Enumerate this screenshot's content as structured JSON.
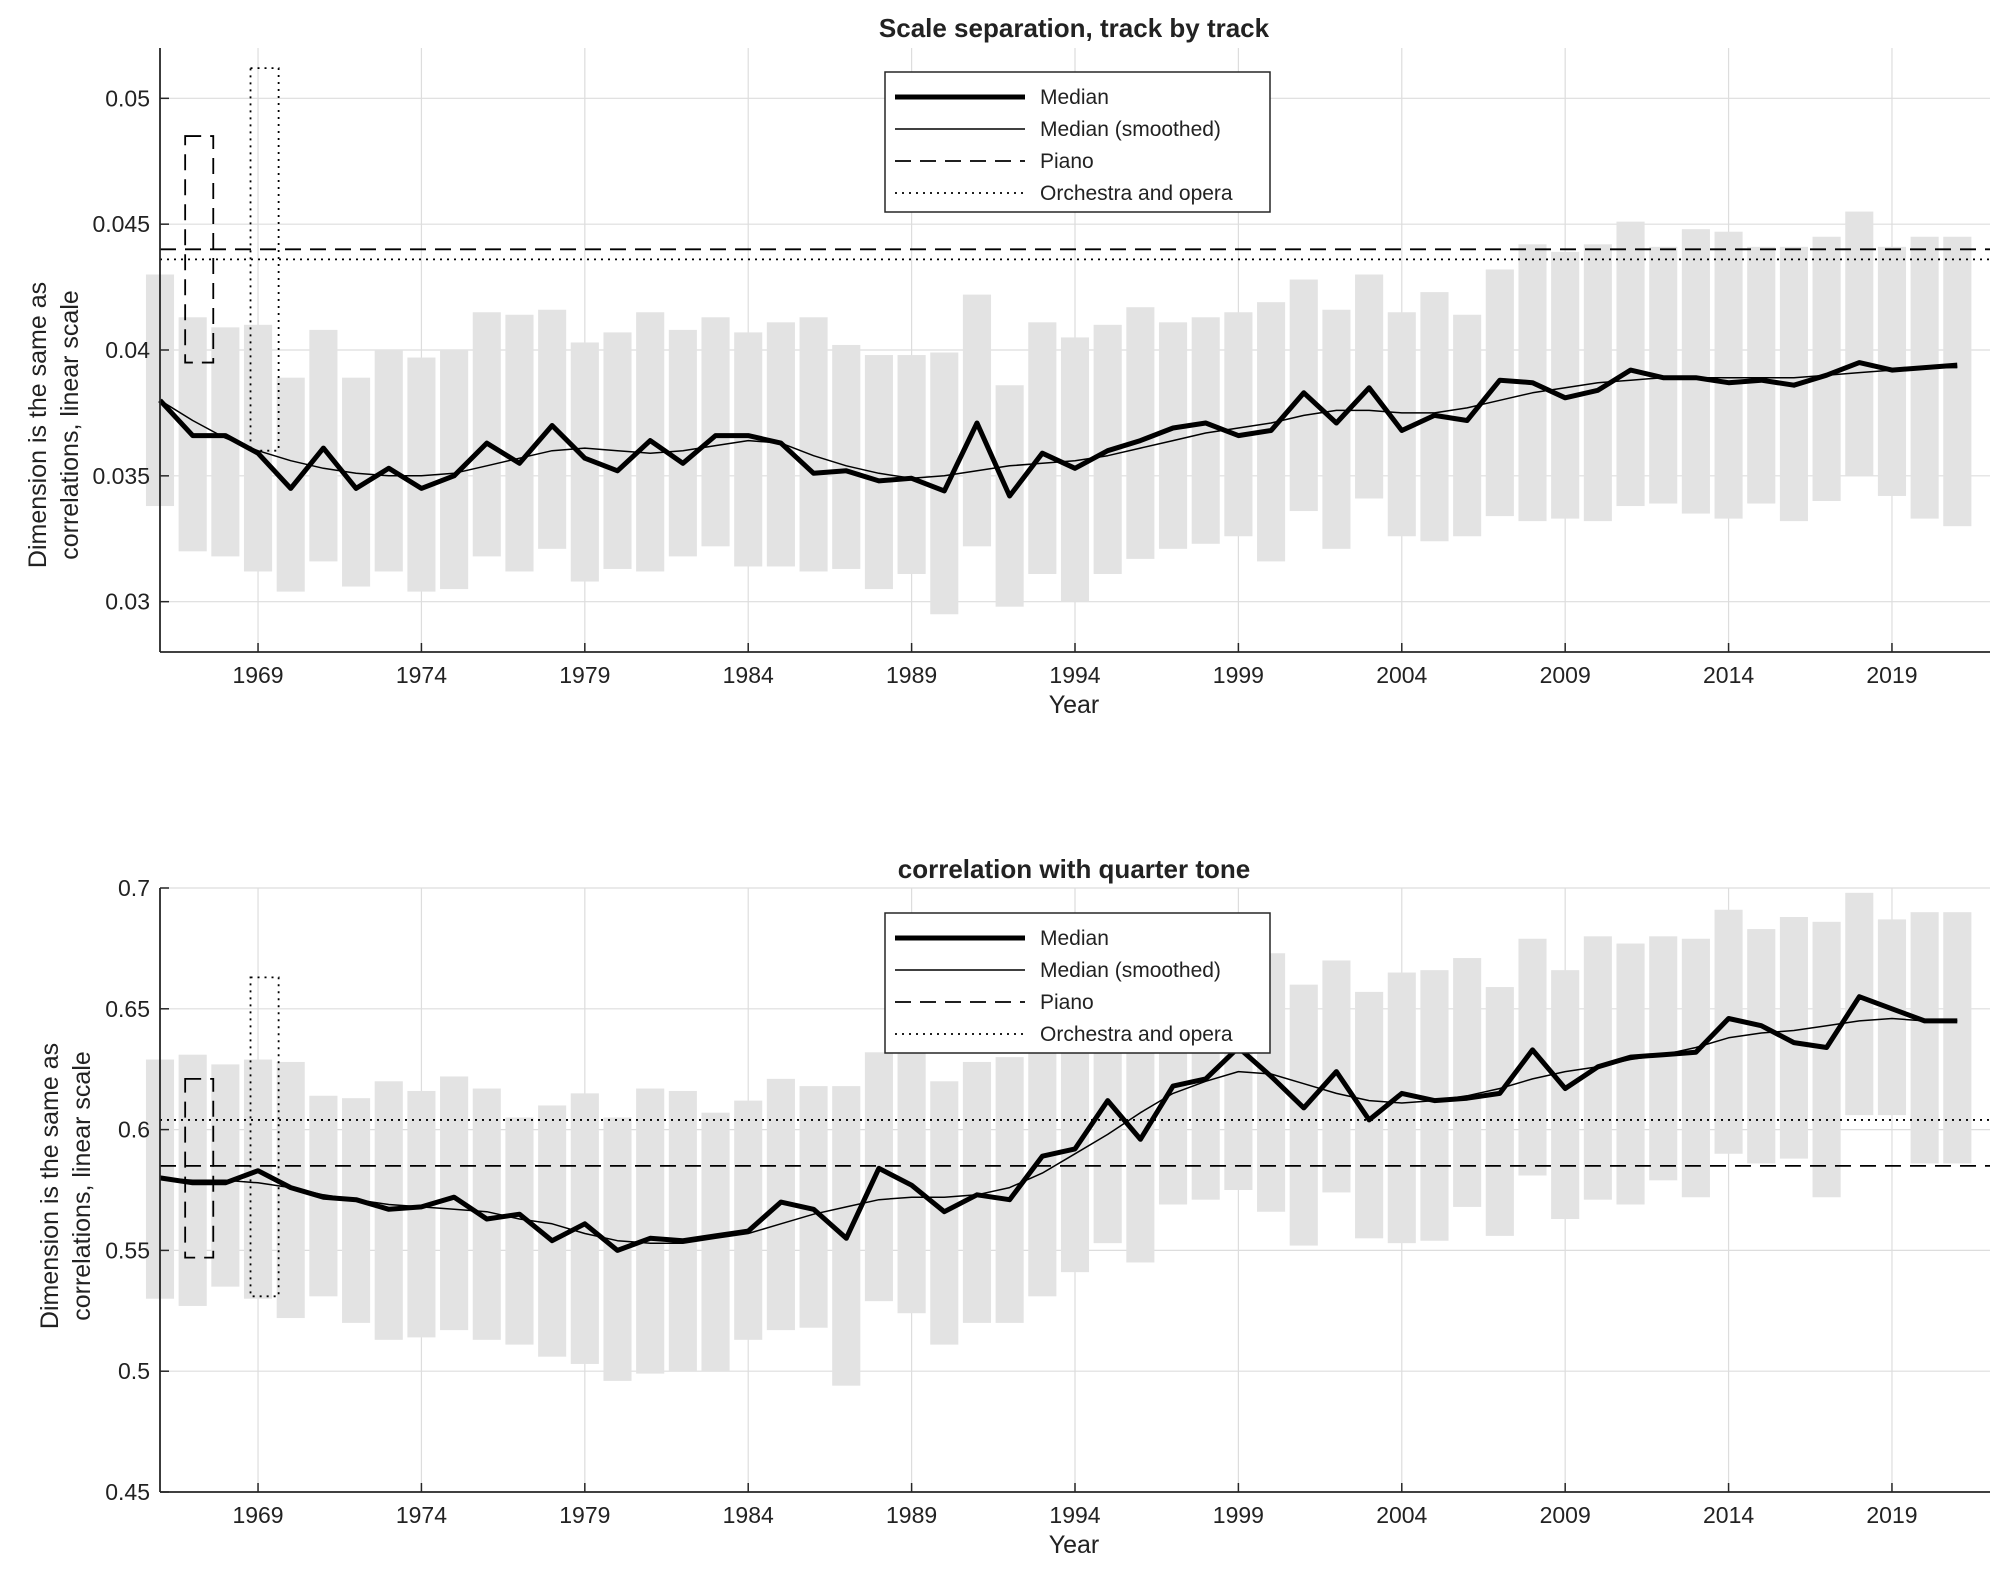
{
  "chart_data": [
    {
      "type": "line",
      "title": "Scale separation, track by track",
      "xlabel": "Year",
      "ylabel_lines": [
        "Dimension is the same as",
        "correlations, linear scale"
      ],
      "xlim": [
        1966,
        2022
      ],
      "ylim": [
        0.028,
        0.052
      ],
      "yticks": [
        0.03,
        0.035,
        0.04,
        0.045,
        0.05
      ],
      "ytick_labels": [
        "0.03",
        "0.035",
        "0.04",
        "0.045",
        "0.05"
      ],
      "xticks": [
        1969,
        1974,
        1979,
        1984,
        1989,
        1994,
        1999,
        2004,
        2009,
        2014,
        2019
      ],
      "xtick_labels": [
        "1969",
        "1974",
        "1979",
        "1984",
        "1989",
        "1994",
        "1999",
        "2004",
        "2009",
        "2014",
        "2019"
      ],
      "grid": true,
      "legend_position": "top-center",
      "legend": [
        "Median",
        "Median (smoothed)",
        "Piano",
        "Orchestra and opera"
      ],
      "x": [
        1966,
        1967,
        1968,
        1969,
        1970,
        1971,
        1972,
        1973,
        1974,
        1975,
        1976,
        1977,
        1978,
        1979,
        1980,
        1981,
        1982,
        1983,
        1984,
        1985,
        1986,
        1987,
        1988,
        1989,
        1990,
        1991,
        1992,
        1993,
        1994,
        1995,
        1996,
        1997,
        1998,
        1999,
        2000,
        2001,
        2002,
        2003,
        2004,
        2005,
        2006,
        2007,
        2008,
        2009,
        2010,
        2011,
        2012,
        2013,
        2014,
        2015,
        2016,
        2017,
        2018,
        2019,
        2020,
        2021
      ],
      "range_low": [
        0.0338,
        0.032,
        0.0318,
        0.0312,
        0.0304,
        0.0316,
        0.0306,
        0.0312,
        0.0304,
        0.0305,
        0.0318,
        0.0312,
        0.0321,
        0.0308,
        0.0313,
        0.0312,
        0.0318,
        0.0322,
        0.0314,
        0.0314,
        0.0312,
        0.0313,
        0.0305,
        0.0311,
        0.0295,
        0.0322,
        0.0298,
        0.0311,
        0.03,
        0.0311,
        0.0317,
        0.0321,
        0.0323,
        0.0326,
        0.0316,
        0.0336,
        0.0321,
        0.0341,
        0.0326,
        0.0324,
        0.0326,
        0.0334,
        0.0332,
        0.0333,
        0.0332,
        0.0338,
        0.0339,
        0.0335,
        0.0333,
        0.0339,
        0.0332,
        0.034,
        0.035,
        0.0342,
        0.0333,
        0.033
      ],
      "range_high": [
        0.043,
        0.0413,
        0.0409,
        0.041,
        0.0389,
        0.0408,
        0.0389,
        0.04,
        0.0397,
        0.04,
        0.0415,
        0.0414,
        0.0416,
        0.0403,
        0.0407,
        0.0415,
        0.0408,
        0.0413,
        0.0407,
        0.0411,
        0.0413,
        0.0402,
        0.0398,
        0.0398,
        0.0399,
        0.0422,
        0.0386,
        0.0411,
        0.0405,
        0.041,
        0.0417,
        0.0411,
        0.0413,
        0.0415,
        0.0419,
        0.0428,
        0.0416,
        0.043,
        0.0415,
        0.0423,
        0.0414,
        0.0432,
        0.0442,
        0.0439,
        0.0442,
        0.0451,
        0.0441,
        0.0448,
        0.0447,
        0.0441,
        0.0441,
        0.0445,
        0.0455,
        0.0441,
        0.0445,
        0.0445
      ],
      "series": [
        {
          "name": "Median",
          "values": [
            0.038,
            0.0366,
            0.0366,
            0.0359,
            0.0345,
            0.0361,
            0.0345,
            0.0353,
            0.0345,
            0.035,
            0.0363,
            0.0355,
            0.037,
            0.0357,
            0.0352,
            0.0364,
            0.0355,
            0.0366,
            0.0366,
            0.0363,
            0.0351,
            0.0352,
            0.0348,
            0.0349,
            0.0344,
            0.0371,
            0.0342,
            0.0359,
            0.0353,
            0.036,
            0.0364,
            0.0369,
            0.0371,
            0.0366,
            0.0368,
            0.0383,
            0.0371,
            0.0385,
            0.0368,
            0.0374,
            0.0372,
            0.0388,
            0.0387,
            0.0381,
            0.0384,
            0.0392,
            0.0389,
            0.0389,
            0.0387,
            0.0388,
            0.0386,
            0.039,
            0.0395,
            0.0392,
            0.0393,
            0.0394
          ]
        },
        {
          "name": "Median (smoothed)",
          "values": [
            0.038,
            0.0372,
            0.0365,
            0.036,
            0.0356,
            0.0353,
            0.0351,
            0.035,
            0.035,
            0.0351,
            0.0354,
            0.0357,
            0.036,
            0.0361,
            0.036,
            0.0359,
            0.036,
            0.0362,
            0.0364,
            0.0363,
            0.0358,
            0.0354,
            0.0351,
            0.0349,
            0.035,
            0.0352,
            0.0354,
            0.0355,
            0.0356,
            0.0358,
            0.0361,
            0.0364,
            0.0367,
            0.0369,
            0.0371,
            0.0374,
            0.0376,
            0.0376,
            0.0375,
            0.0375,
            0.0377,
            0.038,
            0.0383,
            0.0385,
            0.0387,
            0.0388,
            0.0389,
            0.0389,
            0.0389,
            0.0389,
            0.0389,
            0.039,
            0.0391,
            0.0392,
            0.0393,
            0.0393
          ]
        }
      ],
      "reference_lines": [
        {
          "name": "Piano",
          "value": 0.044
        },
        {
          "name": "Orchestra and opera",
          "value": 0.0436
        }
      ],
      "reference_ranges": [
        {
          "name": "Piano",
          "x": 1967.2,
          "low": 0.0395,
          "high": 0.0485
        },
        {
          "name": "Orchestra and opera",
          "x": 1969.2,
          "low": 0.036,
          "high": 0.0512
        }
      ]
    },
    {
      "type": "line",
      "title": "correlation with quarter tone",
      "xlabel": "Year",
      "ylabel_lines": [
        "Dimension is the same as",
        "correlations, linear scale"
      ],
      "xlim": [
        1966,
        2022
      ],
      "ylim": [
        0.45,
        0.7
      ],
      "yticks": [
        0.45,
        0.5,
        0.55,
        0.6,
        0.65,
        0.7
      ],
      "ytick_labels": [
        "0.45",
        "0.5",
        "0.55",
        "0.6",
        "0.65",
        "0.7"
      ],
      "xticks": [
        1969,
        1974,
        1979,
        1984,
        1989,
        1994,
        1999,
        2004,
        2009,
        2014,
        2019
      ],
      "xtick_labels": [
        "1969",
        "1974",
        "1979",
        "1984",
        "1989",
        "1994",
        "1999",
        "2004",
        "2009",
        "2014",
        "2019"
      ],
      "grid": true,
      "legend_position": "top-center",
      "legend": [
        "Median",
        "Median (smoothed)",
        "Piano",
        "Orchestra and opera"
      ],
      "x": [
        1966,
        1967,
        1968,
        1969,
        1970,
        1971,
        1972,
        1973,
        1974,
        1975,
        1976,
        1977,
        1978,
        1979,
        1980,
        1981,
        1982,
        1983,
        1984,
        1985,
        1986,
        1987,
        1988,
        1989,
        1990,
        1991,
        1992,
        1993,
        1994,
        1995,
        1996,
        1997,
        1998,
        1999,
        2000,
        2001,
        2002,
        2003,
        2004,
        2005,
        2006,
        2007,
        2008,
        2009,
        2010,
        2011,
        2012,
        2013,
        2014,
        2015,
        2016,
        2017,
        2018,
        2019,
        2020,
        2021
      ],
      "range_low": [
        0.53,
        0.527,
        0.535,
        0.53,
        0.522,
        0.531,
        0.52,
        0.513,
        0.514,
        0.517,
        0.513,
        0.511,
        0.506,
        0.503,
        0.496,
        0.499,
        0.5,
        0.5,
        0.513,
        0.517,
        0.518,
        0.494,
        0.529,
        0.524,
        0.511,
        0.52,
        0.52,
        0.531,
        0.541,
        0.553,
        0.545,
        0.569,
        0.571,
        0.575,
        0.566,
        0.552,
        0.574,
        0.555,
        0.553,
        0.554,
        0.568,
        0.556,
        0.581,
        0.563,
        0.571,
        0.569,
        0.579,
        0.572,
        0.59,
        0.586,
        0.588,
        0.572,
        0.606,
        0.606,
        0.586,
        0.586
      ],
      "range_high": [
        0.629,
        0.631,
        0.627,
        0.629,
        0.628,
        0.614,
        0.613,
        0.62,
        0.616,
        0.622,
        0.617,
        0.605,
        0.61,
        0.615,
        0.605,
        0.617,
        0.616,
        0.607,
        0.612,
        0.621,
        0.618,
        0.618,
        0.632,
        0.632,
        0.62,
        0.628,
        0.63,
        0.632,
        0.632,
        0.64,
        0.646,
        0.65,
        0.668,
        0.678,
        0.673,
        0.66,
        0.67,
        0.657,
        0.665,
        0.666,
        0.671,
        0.659,
        0.679,
        0.666,
        0.68,
        0.677,
        0.68,
        0.679,
        0.691,
        0.683,
        0.688,
        0.686,
        0.698,
        0.687,
        0.69,
        0.69
      ],
      "series": [
        {
          "name": "Median",
          "values": [
            0.58,
            0.578,
            0.578,
            0.583,
            0.576,
            0.572,
            0.571,
            0.567,
            0.568,
            0.572,
            0.563,
            0.565,
            0.554,
            0.561,
            0.55,
            0.555,
            0.554,
            0.556,
            0.558,
            0.57,
            0.567,
            0.555,
            0.584,
            0.577,
            0.566,
            0.573,
            0.571,
            0.589,
            0.592,
            0.612,
            0.596,
            0.618,
            0.621,
            0.634,
            0.622,
            0.609,
            0.624,
            0.604,
            0.615,
            0.612,
            0.613,
            0.615,
            0.633,
            0.617,
            0.626,
            0.63,
            0.631,
            0.632,
            0.646,
            0.643,
            0.636,
            0.634,
            0.655,
            0.65,
            0.645,
            0.645
          ]
        },
        {
          "name": "Median (smoothed)",
          "values": [
            0.58,
            0.579,
            0.579,
            0.578,
            0.576,
            0.573,
            0.571,
            0.569,
            0.568,
            0.567,
            0.566,
            0.563,
            0.561,
            0.557,
            0.554,
            0.553,
            0.553,
            0.555,
            0.557,
            0.561,
            0.565,
            0.568,
            0.571,
            0.572,
            0.572,
            0.573,
            0.576,
            0.582,
            0.59,
            0.598,
            0.607,
            0.615,
            0.62,
            0.624,
            0.623,
            0.619,
            0.615,
            0.612,
            0.611,
            0.612,
            0.614,
            0.617,
            0.621,
            0.624,
            0.626,
            0.629,
            0.631,
            0.634,
            0.638,
            0.64,
            0.641,
            0.643,
            0.645,
            0.646,
            0.645,
            0.645
          ]
        }
      ],
      "reference_lines": [
        {
          "name": "Piano",
          "value": 0.585
        },
        {
          "name": "Orchestra and opera",
          "value": 0.604
        }
      ],
      "reference_ranges": [
        {
          "name": "Piano",
          "x": 1967.2,
          "low": 0.547,
          "high": 0.621
        },
        {
          "name": "Orchestra and opera",
          "x": 1969.2,
          "low": 0.531,
          "high": 0.663
        }
      ]
    }
  ],
  "colors": {
    "range_bar": "#e3e3e3",
    "grid": "#dddddd",
    "axis": "#262626",
    "line": "#000000"
  }
}
